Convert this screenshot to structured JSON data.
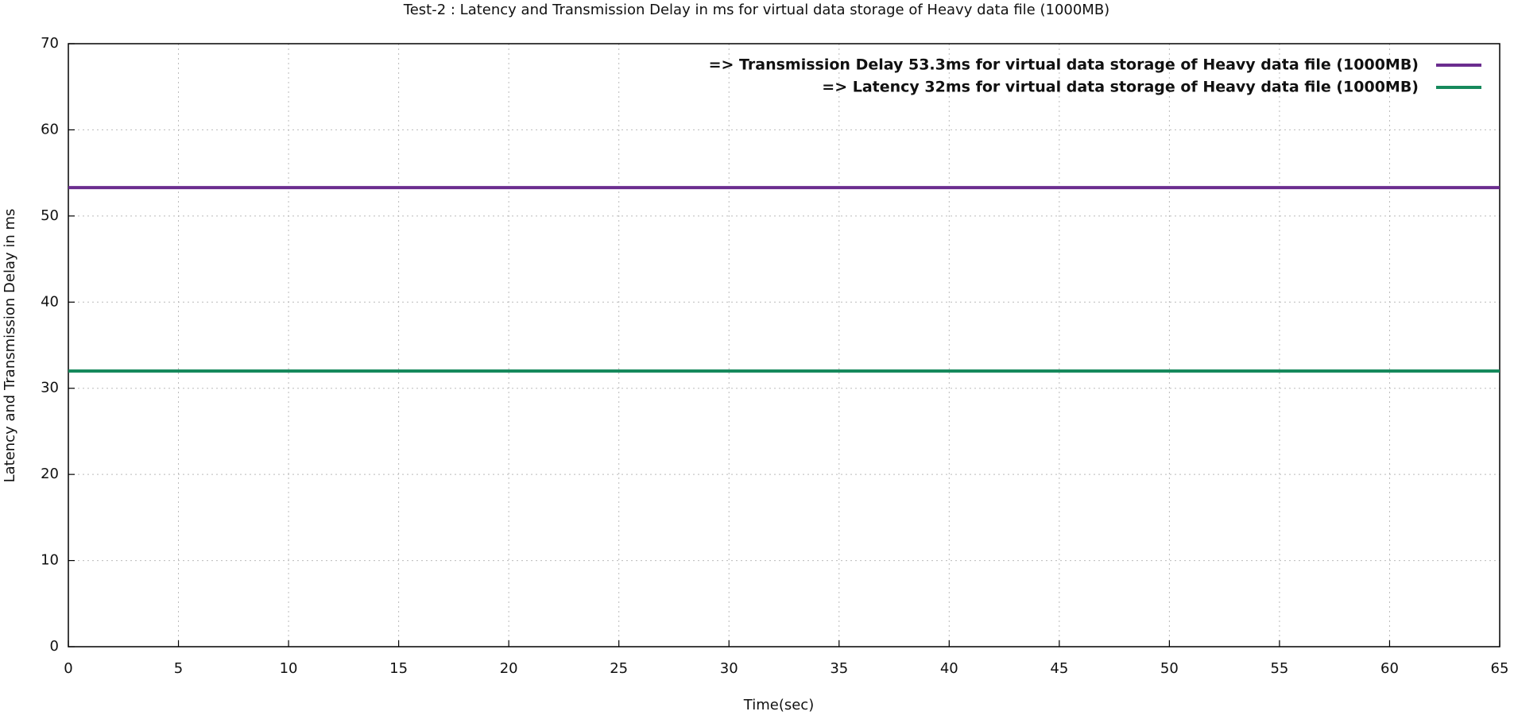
{
  "chart_data": {
    "type": "line",
    "title": "Test-2 : Latency and Transmission Delay in ms for virtual data storage of Heavy data file (1000MB)",
    "xlabel": "Time(sec)",
    "ylabel": "Latency and Transmission Delay in ms",
    "x": [
      0,
      65
    ],
    "series": [
      {
        "name": "=>  Transmission Delay 53.3ms for virtual data storage of Heavy data file (1000MB)",
        "color": "#6b2d8f",
        "values": [
          53.3,
          53.3
        ]
      },
      {
        "name": "=>  Latency 32ms for virtual data storage of Heavy data file (1000MB)",
        "color": "#16895c",
        "values": [
          32,
          32
        ]
      }
    ],
    "xlim": [
      0,
      65
    ],
    "xticks": [
      0,
      5,
      10,
      15,
      20,
      25,
      30,
      35,
      40,
      45,
      50,
      55,
      60,
      65
    ],
    "ylim": [
      0,
      70
    ],
    "yticks": [
      0,
      10,
      20,
      30,
      40,
      50,
      60,
      70
    ],
    "grid": true,
    "legend": "top-right"
  }
}
